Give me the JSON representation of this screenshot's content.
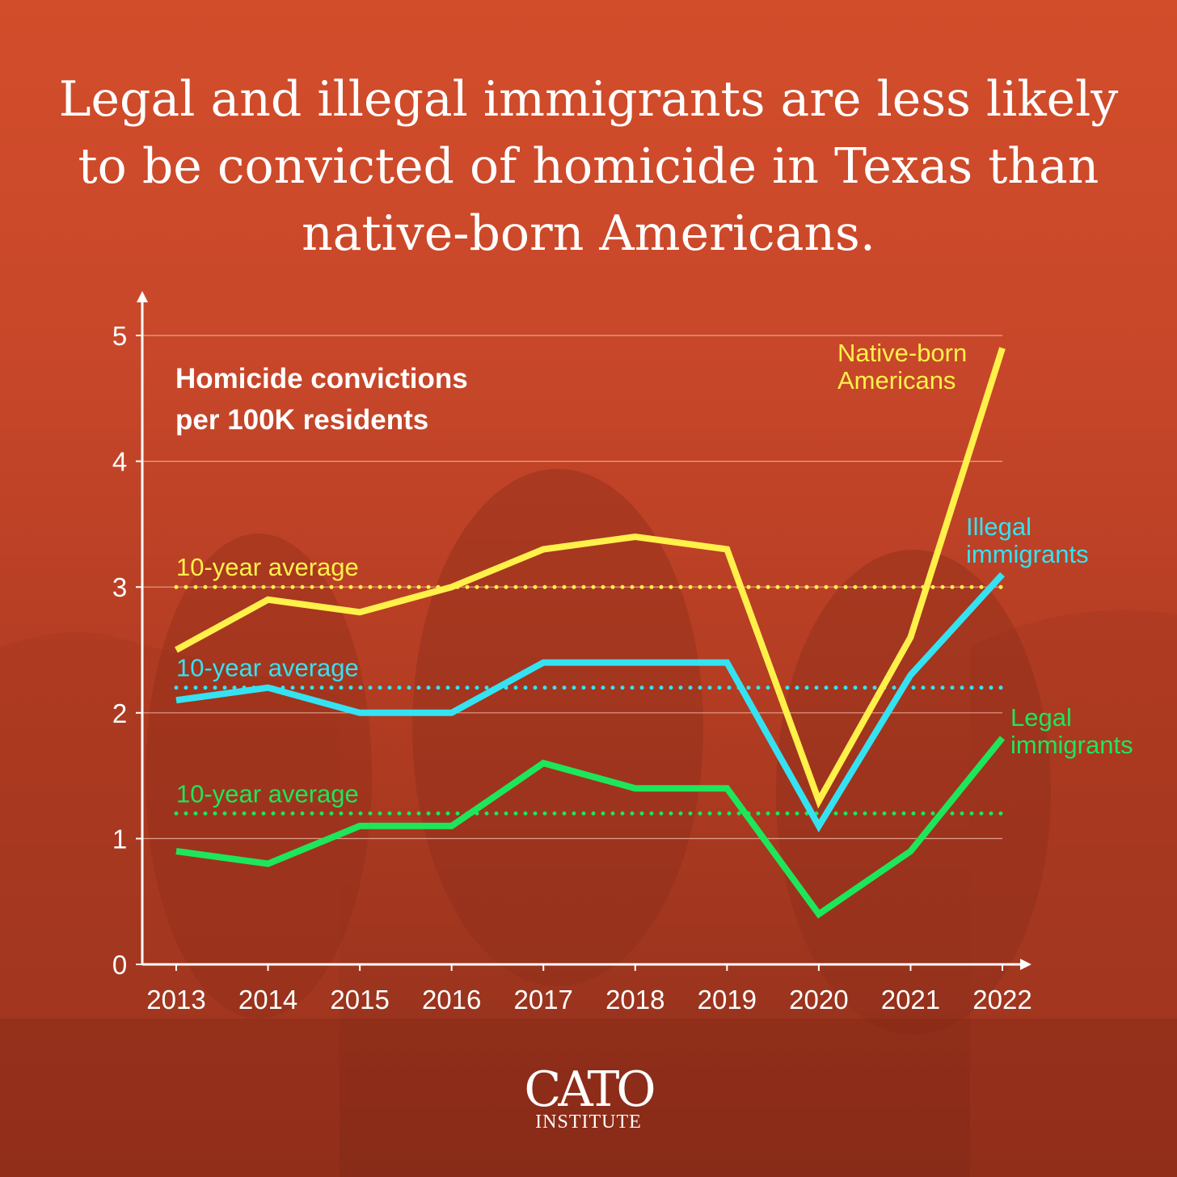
{
  "headline": "Legal and illegal immigrants are less likely to be convicted of homicide in Texas than native-born Americans.",
  "logo": {
    "main": "CATO",
    "sub": "INSTITUTE"
  },
  "colors": {
    "native": "#fff04a",
    "illegal": "#35e2f2",
    "legal": "#1ee65a",
    "axis": "#ffffff",
    "grid": "#f2b9a6"
  },
  "chart_data": {
    "type": "line",
    "metric_label": [
      "Homicide convictions",
      "per 100K residents"
    ],
    "x": [
      2013,
      2014,
      2015,
      2016,
      2017,
      2018,
      2019,
      2020,
      2021,
      2022
    ],
    "ylim": [
      0,
      5
    ],
    "yticks": [
      0,
      1,
      2,
      3,
      4,
      5
    ],
    "grid": true,
    "series": [
      {
        "key": "native",
        "name": [
          "Native-born",
          "Americans"
        ],
        "values": [
          2.5,
          2.9,
          2.8,
          3.0,
          3.3,
          3.4,
          3.3,
          1.3,
          2.6,
          4.9
        ],
        "average": 3.0,
        "average_label": "10-year average"
      },
      {
        "key": "illegal",
        "name": [
          "Illegal",
          "immigrants"
        ],
        "values": [
          2.1,
          2.2,
          2.0,
          2.0,
          2.4,
          2.4,
          2.4,
          1.1,
          2.3,
          3.1
        ],
        "average": 2.2,
        "average_label": "10-year average"
      },
      {
        "key": "legal",
        "name": [
          "Legal",
          "immigrants"
        ],
        "values": [
          0.9,
          0.8,
          1.1,
          1.1,
          1.6,
          1.4,
          1.4,
          0.4,
          0.9,
          1.8
        ],
        "average": 1.2,
        "average_label": "10-year average"
      }
    ]
  }
}
